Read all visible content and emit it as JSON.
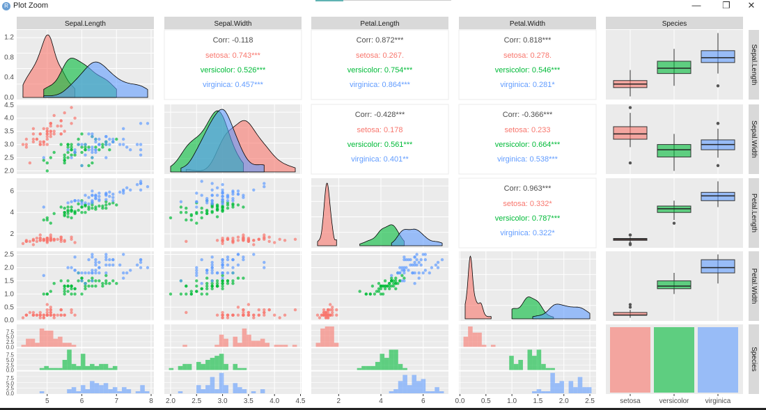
{
  "window": {
    "title": "Plot Zoom",
    "app_icon_letter": "R",
    "controls": {
      "minimize": "—",
      "restore": "❐",
      "close": "✕"
    }
  },
  "chart_data": {
    "type": "scatter-matrix",
    "title": "",
    "variables": [
      "Sepal.Length",
      "Sepal.Width",
      "Petal.Length",
      "Petal.Width",
      "Species"
    ],
    "species": [
      "setosa",
      "versicolor",
      "virginica"
    ],
    "colors": {
      "setosa": "#F8766D",
      "versicolor": "#00BA38",
      "virginica": "#619CFF"
    },
    "axis_ticks": {
      "Sepal.Length": {
        "x": [
          5,
          6,
          7,
          8
        ],
        "range": [
          4.3,
          7.9
        ]
      },
      "Sepal.Width": {
        "x": [
          2.0,
          2.5,
          3.0,
          3.5,
          4.0,
          4.5
        ],
        "range": [
          2.0,
          4.4
        ]
      },
      "Petal.Length": {
        "x": [
          2,
          4,
          6
        ],
        "range": [
          1.0,
          6.9
        ]
      },
      "Petal.Width": {
        "x": [
          0.0,
          0.5,
          1.0,
          1.5,
          2.0,
          2.5
        ],
        "range": [
          0.1,
          2.5
        ]
      }
    },
    "row_y_ticks": {
      "Sepal.Length": [
        "0.0",
        "0.4",
        "0.8",
        "1.2"
      ],
      "Sepal.Width": [
        "2.0",
        "2.5",
        "3.0",
        "3.5",
        "4.0",
        "4.5"
      ],
      "Petal.Length": [
        "2",
        "4",
        "6"
      ],
      "Petal.Width": [
        "0.0",
        "0.5",
        "1.0",
        "1.5",
        "2.0",
        "2.5"
      ],
      "Species": [
        "0.0",
        "2.5",
        "5.0",
        "7.5"
      ]
    },
    "species_x_ticks": [
      "setosa",
      "versicolor",
      "virginica"
    ],
    "correlations": [
      {
        "row": "Sepal.Length",
        "col": "Sepal.Width",
        "corr": "Corr: -0.118",
        "setosa": "setosa: 0.743***",
        "versicolor": "versicolor: 0.526***",
        "virginica": "virginica: 0.457***"
      },
      {
        "row": "Sepal.Length",
        "col": "Petal.Length",
        "corr": "Corr: 0.872***",
        "setosa": "setosa: 0.267.",
        "versicolor": "versicolor: 0.754***",
        "virginica": "virginica: 0.864***"
      },
      {
        "row": "Sepal.Length",
        "col": "Petal.Width",
        "corr": "Corr: 0.818***",
        "setosa": "setosa: 0.278.",
        "versicolor": "versicolor: 0.546***",
        "virginica": "virginica: 0.281*"
      },
      {
        "row": "Sepal.Width",
        "col": "Petal.Length",
        "corr": "Corr: -0.428***",
        "setosa": "setosa: 0.178",
        "versicolor": "versicolor: 0.561***",
        "virginica": "virginica: 0.401**"
      },
      {
        "row": "Sepal.Width",
        "col": "Petal.Width",
        "corr": "Corr: -0.366***",
        "setosa": "setosa: 0.233",
        "versicolor": "versicolor: 0.664***",
        "virginica": "virginica: 0.538***"
      },
      {
        "row": "Petal.Length",
        "col": "Petal.Width",
        "corr": "Corr: 0.963***",
        "setosa": "setosa: 0.332*",
        "versicolor": "versicolor: 0.787***",
        "virginica": "virginica: 0.322*"
      }
    ],
    "species_counts": {
      "setosa": 50,
      "versicolor": 50,
      "virginica": 50
    },
    "data": {
      "setosa": {
        "Sepal.Length": [
          5.1,
          4.9,
          4.7,
          4.6,
          5.0,
          5.4,
          4.6,
          5.0,
          4.4,
          4.9,
          5.4,
          4.8,
          4.8,
          4.3,
          5.8,
          5.7,
          5.4,
          5.1,
          5.7,
          5.1,
          5.4,
          5.1,
          4.6,
          5.1,
          4.8,
          5.0,
          5.0,
          5.2,
          5.2,
          4.7,
          4.8,
          5.4,
          5.2,
          5.5,
          4.9,
          5.0,
          5.5,
          4.9,
          4.4,
          5.1,
          5.0,
          4.5,
          4.4,
          5.0,
          5.1,
          4.8,
          5.1,
          4.6,
          5.3,
          5.0
        ],
        "Sepal.Width": [
          3.5,
          3.0,
          3.2,
          3.1,
          3.6,
          3.9,
          3.4,
          3.4,
          2.9,
          3.1,
          3.7,
          3.4,
          3.0,
          3.0,
          4.0,
          4.4,
          3.9,
          3.5,
          3.8,
          3.8,
          3.4,
          3.7,
          3.6,
          3.3,
          3.4,
          3.0,
          3.4,
          3.5,
          3.4,
          3.2,
          3.1,
          3.4,
          4.1,
          4.2,
          3.1,
          3.2,
          3.5,
          3.6,
          3.0,
          3.4,
          3.5,
          2.3,
          3.2,
          3.5,
          3.8,
          3.0,
          3.8,
          3.2,
          3.7,
          3.3
        ],
        "Petal.Length": [
          1.4,
          1.4,
          1.3,
          1.5,
          1.4,
          1.7,
          1.4,
          1.5,
          1.4,
          1.5,
          1.5,
          1.6,
          1.4,
          1.1,
          1.2,
          1.5,
          1.3,
          1.4,
          1.7,
          1.5,
          1.7,
          1.5,
          1.0,
          1.7,
          1.9,
          1.6,
          1.6,
          1.5,
          1.4,
          1.6,
          1.6,
          1.5,
          1.5,
          1.4,
          1.5,
          1.2,
          1.3,
          1.4,
          1.3,
          1.5,
          1.3,
          1.3,
          1.3,
          1.6,
          1.9,
          1.4,
          1.6,
          1.4,
          1.5,
          1.4
        ],
        "Petal.Width": [
          0.2,
          0.2,
          0.2,
          0.2,
          0.2,
          0.4,
          0.3,
          0.2,
          0.2,
          0.1,
          0.2,
          0.2,
          0.1,
          0.1,
          0.2,
          0.4,
          0.4,
          0.3,
          0.3,
          0.3,
          0.2,
          0.4,
          0.2,
          0.5,
          0.2,
          0.2,
          0.4,
          0.2,
          0.2,
          0.2,
          0.2,
          0.4,
          0.1,
          0.2,
          0.2,
          0.2,
          0.2,
          0.1,
          0.2,
          0.2,
          0.3,
          0.3,
          0.2,
          0.6,
          0.4,
          0.3,
          0.2,
          0.2,
          0.2,
          0.2
        ]
      },
      "versicolor": {
        "Sepal.Length": [
          7.0,
          6.4,
          6.9,
          5.5,
          6.5,
          5.7,
          6.3,
          4.9,
          6.6,
          5.2,
          5.0,
          5.9,
          6.0,
          6.1,
          5.6,
          6.7,
          5.6,
          5.8,
          6.2,
          5.6,
          5.9,
          6.1,
          6.3,
          6.1,
          6.4,
          6.6,
          6.8,
          6.7,
          6.0,
          5.7,
          5.5,
          5.5,
          5.8,
          6.0,
          5.4,
          6.0,
          6.7,
          6.3,
          5.6,
          5.5,
          5.5,
          6.1,
          5.8,
          5.0,
          5.6,
          5.7,
          5.7,
          6.2,
          5.1,
          5.7
        ],
        "Sepal.Width": [
          3.2,
          3.2,
          3.1,
          2.3,
          2.8,
          2.8,
          3.3,
          2.4,
          2.9,
          2.7,
          2.0,
          3.0,
          2.2,
          2.9,
          2.9,
          3.1,
          3.0,
          2.7,
          2.2,
          2.5,
          3.2,
          2.8,
          2.5,
          2.8,
          2.9,
          3.0,
          2.8,
          3.0,
          2.9,
          2.6,
          2.4,
          2.4,
          2.7,
          2.7,
          3.0,
          3.4,
          3.1,
          2.3,
          3.0,
          2.5,
          2.6,
          3.0,
          2.6,
          2.3,
          2.7,
          3.0,
          2.9,
          2.9,
          2.5,
          2.8
        ],
        "Petal.Length": [
          4.7,
          4.5,
          4.9,
          4.0,
          4.6,
          4.5,
          4.7,
          3.3,
          4.6,
          3.9,
          3.5,
          4.2,
          4.0,
          4.7,
          3.6,
          4.4,
          4.5,
          4.1,
          4.5,
          3.9,
          4.8,
          4.0,
          4.9,
          4.7,
          4.3,
          4.4,
          4.8,
          5.0,
          4.5,
          3.5,
          3.8,
          3.7,
          3.9,
          5.1,
          4.5,
          4.5,
          4.7,
          4.4,
          4.1,
          4.0,
          4.4,
          4.6,
          4.0,
          3.3,
          4.2,
          4.2,
          4.2,
          4.3,
          3.0,
          4.1
        ],
        "Petal.Width": [
          1.4,
          1.5,
          1.5,
          1.3,
          1.5,
          1.3,
          1.6,
          1.0,
          1.3,
          1.4,
          1.0,
          1.5,
          1.0,
          1.4,
          1.3,
          1.4,
          1.5,
          1.0,
          1.5,
          1.1,
          1.8,
          1.3,
          1.5,
          1.2,
          1.3,
          1.4,
          1.4,
          1.7,
          1.5,
          1.0,
          1.1,
          1.0,
          1.2,
          1.6,
          1.5,
          1.6,
          1.5,
          1.3,
          1.3,
          1.3,
          1.2,
          1.4,
          1.2,
          1.0,
          1.3,
          1.2,
          1.3,
          1.3,
          1.1,
          1.3
        ]
      },
      "virginica": {
        "Sepal.Length": [
          6.3,
          5.8,
          7.1,
          6.3,
          6.5,
          7.6,
          4.9,
          7.3,
          6.7,
          7.2,
          6.5,
          6.4,
          6.8,
          5.7,
          5.8,
          6.4,
          6.5,
          7.7,
          7.7,
          6.0,
          6.9,
          5.6,
          7.7,
          6.3,
          6.7,
          7.2,
          6.2,
          6.1,
          6.4,
          7.2,
          7.4,
          7.9,
          6.4,
          6.3,
          6.1,
          7.7,
          6.3,
          6.4,
          6.0,
          6.9,
          6.7,
          6.9,
          5.8,
          6.8,
          6.7,
          6.7,
          6.3,
          6.5,
          6.2,
          5.9
        ],
        "Sepal.Width": [
          3.3,
          2.7,
          3.0,
          2.9,
          3.0,
          3.0,
          2.5,
          2.9,
          2.5,
          3.6,
          3.2,
          2.7,
          3.0,
          2.5,
          2.8,
          3.2,
          3.0,
          3.8,
          2.6,
          2.2,
          3.2,
          2.8,
          2.8,
          2.7,
          3.3,
          3.2,
          2.8,
          3.0,
          2.8,
          3.0,
          2.8,
          3.8,
          2.8,
          2.8,
          2.6,
          3.0,
          3.4,
          3.1,
          3.0,
          3.1,
          3.1,
          3.1,
          2.7,
          3.2,
          3.3,
          3.0,
          2.5,
          3.0,
          3.4,
          3.0
        ],
        "Petal.Length": [
          6.0,
          5.1,
          5.9,
          5.6,
          5.8,
          6.6,
          4.5,
          6.3,
          5.8,
          6.1,
          5.1,
          5.3,
          5.5,
          5.0,
          5.1,
          5.3,
          5.5,
          6.7,
          6.9,
          5.0,
          5.7,
          4.9,
          6.7,
          4.9,
          5.7,
          6.0,
          4.8,
          4.9,
          5.6,
          5.8,
          6.1,
          6.4,
          5.6,
          5.1,
          5.6,
          6.1,
          5.6,
          5.5,
          4.8,
          5.4,
          5.6,
          5.1,
          5.1,
          5.9,
          5.7,
          5.2,
          5.0,
          5.2,
          5.4,
          5.1
        ],
        "Petal.Width": [
          2.5,
          1.9,
          2.1,
          1.8,
          2.2,
          2.1,
          1.7,
          1.8,
          1.8,
          2.5,
          2.0,
          1.9,
          2.1,
          2.0,
          2.4,
          2.3,
          1.8,
          2.2,
          2.3,
          1.5,
          2.3,
          2.0,
          2.0,
          1.8,
          2.1,
          1.8,
          1.8,
          1.8,
          2.1,
          1.6,
          1.9,
          2.0,
          2.2,
          1.5,
          1.4,
          2.3,
          2.4,
          1.8,
          1.8,
          2.1,
          2.4,
          2.3,
          1.9,
          2.3,
          2.5,
          2.3,
          1.9,
          2.0,
          2.3,
          1.8
        ]
      }
    }
  }
}
